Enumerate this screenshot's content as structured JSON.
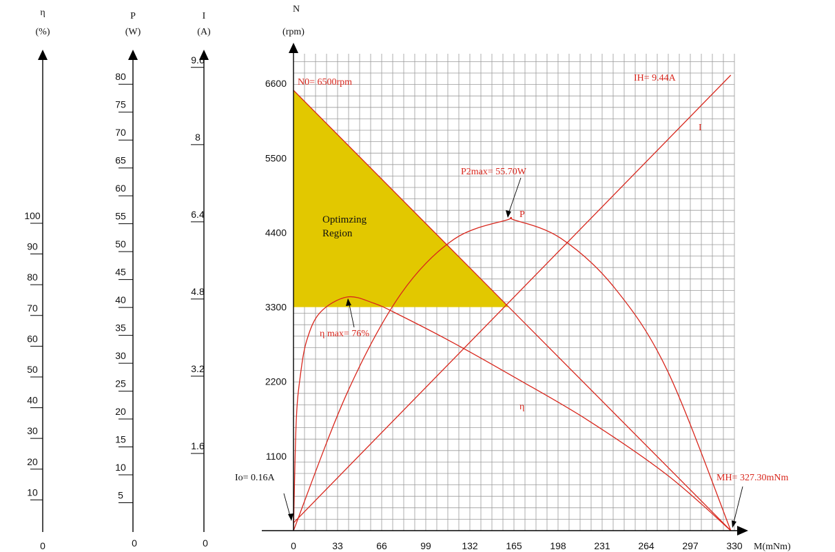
{
  "chart_data": {
    "type": "line",
    "colors": {
      "curve": "#d8261c",
      "region": "#e2c800",
      "grid": "#9a9a9a"
    },
    "aux_axes": [
      {
        "key": "eta",
        "symbol": "η",
        "unit": "(%)",
        "ticks": [
          10,
          20,
          30,
          40,
          50,
          60,
          70,
          80,
          90,
          100
        ],
        "min_label": "0"
      },
      {
        "key": "P",
        "symbol": "P",
        "unit": "(W)",
        "ticks": [
          5,
          10,
          15,
          20,
          25,
          30,
          35,
          40,
          45,
          50,
          55,
          60,
          65,
          70,
          75,
          80
        ],
        "min_label": "0"
      },
      {
        "key": "I",
        "symbol": "I",
        "unit": "(A)",
        "ticks": [
          "1.6",
          "3.2",
          "4.8",
          "6.4",
          "8",
          "9.6"
        ],
        "min_label": "0"
      }
    ],
    "main": {
      "y_symbol": "N",
      "y_unit": "(rpm)",
      "x_label": "M(mNm)",
      "x_ticks": [
        0,
        33,
        66,
        99,
        132,
        165,
        198,
        231,
        264,
        297,
        330
      ],
      "y_ticks": [
        1100,
        2200,
        3300,
        4400,
        5500,
        6600
      ],
      "xlim": [
        0,
        330
      ],
      "ylim": [
        0,
        6900
      ]
    },
    "series": [
      {
        "name": "N",
        "x": [
          0,
          327.3
        ],
        "y": [
          6500,
          0
        ]
      },
      {
        "name": "I",
        "x": [
          0,
          327.3
        ],
        "y": [
          0.16,
          9.44
        ]
      },
      {
        "name": "P",
        "x": [
          0,
          40,
          80,
          120,
          160,
          165,
          200,
          240,
          280,
          327.3
        ],
        "y": [
          0,
          24.6,
          42.3,
          52.2,
          55.7,
          55.7,
          52.4,
          43.6,
          28.6,
          0
        ]
      },
      {
        "name": "η",
        "x": [
          0,
          2,
          5,
          10,
          20,
          40,
          60,
          80,
          120,
          165,
          220,
          280,
          327.3
        ],
        "y": [
          0,
          35,
          50,
          62,
          71,
          76,
          74,
          70,
          61,
          50,
          36,
          18,
          0
        ]
      }
    ],
    "region": {
      "label_line1": "Optimzing",
      "label_line2": "Region",
      "n_min": 3300
    },
    "annotations": {
      "n0": "N0= 6500rpm",
      "ih": "IH= 9.44A",
      "i_curve": "I",
      "p2max": "P2max= 55.70W",
      "p_curve": "P",
      "eta_max": "η max= 76%",
      "eta_curve": "η",
      "io": "Io= 0.16A",
      "mh": "MH= 327.30mNm"
    }
  }
}
